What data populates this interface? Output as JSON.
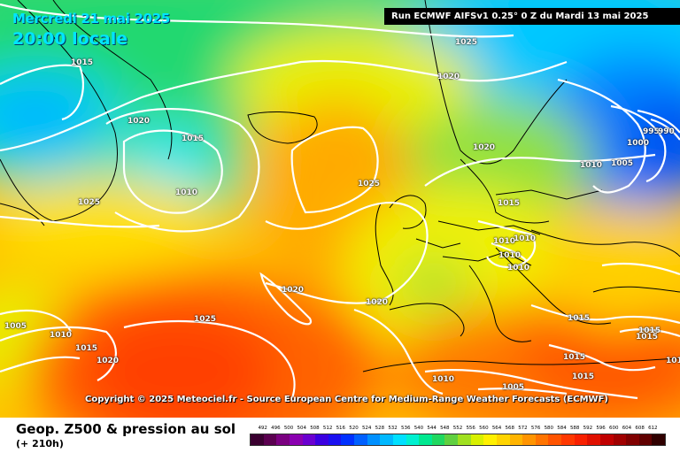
{
  "header": {
    "date": "Mercredi 21 mai 2025",
    "time": "20:00 locale",
    "run": "Run ECMWF AIFSv1 0.25° 0 Z du Mardi 13 mai 2025"
  },
  "copyright": "Copyright © 2025 Meteociel.fr - Source European Centre for Medium-Range Weather Forecasts (ECMWF)",
  "footer": {
    "title": "Geop. Z500 & pression au sol",
    "subtitle": "(+ 210h)"
  },
  "isobars": [
    {
      "id": "1025-north",
      "text": "1025"
    },
    {
      "id": "1015-greenland",
      "text": "1015"
    },
    {
      "id": "1020-iceland-n",
      "text": "1020"
    },
    {
      "id": "1020-west",
      "text": "1020"
    },
    {
      "id": "1015-low",
      "text": "1015"
    },
    {
      "id": "1010-low",
      "text": "1010"
    },
    {
      "id": "1025-west",
      "text": "1025"
    },
    {
      "id": "1025-highcenter",
      "text": "1025"
    },
    {
      "id": "1020-norway",
      "text": "1020"
    },
    {
      "id": "1010-russia",
      "text": "1010"
    },
    {
      "id": "1005-russia",
      "text": "1005"
    },
    {
      "id": "1000-russia",
      "text": "1000"
    },
    {
      "id": "995-russia",
      "text": "995"
    },
    {
      "id": "990-russia",
      "text": "990"
    },
    {
      "id": "1015-baltic",
      "text": "1015"
    },
    {
      "id": "1010-germany",
      "text": "1010"
    },
    {
      "id": "1010-germany-b",
      "text": "1010"
    },
    {
      "id": "1010-alps",
      "text": "1010"
    },
    {
      "id": "1010-alps-b",
      "text": "1010"
    },
    {
      "id": "1020-atlantic",
      "text": "1020"
    },
    {
      "id": "1020-biscay",
      "text": "1020"
    },
    {
      "id": "1025-azores",
      "text": "1025"
    },
    {
      "id": "1005-west",
      "text": "1005"
    },
    {
      "id": "1010-west",
      "text": "1010"
    },
    {
      "id": "1015-west",
      "text": "1015"
    },
    {
      "id": "1020-sw",
      "text": "1020"
    },
    {
      "id": "1015-balkans",
      "text": "1015"
    },
    {
      "id": "1015-turkey",
      "text": "1015"
    },
    {
      "id": "1015-turkey-b",
      "text": "1015"
    },
    {
      "id": "1015-greece",
      "text": "1015"
    },
    {
      "id": "1015-libya",
      "text": "1015"
    },
    {
      "id": "1010-africa",
      "text": "1010"
    },
    {
      "id": "1005-africa",
      "text": "1005"
    },
    {
      "id": "1010-far-east",
      "text": "1010"
    }
  ],
  "scale": {
    "labels": [
      "492",
      "496",
      "500",
      "504",
      "508",
      "512",
      "516",
      "520",
      "524",
      "528",
      "532",
      "536",
      "540",
      "544",
      "548",
      "552",
      "556",
      "560",
      "564",
      "568",
      "572",
      "576",
      "580",
      "584",
      "588",
      "592",
      "596",
      "600",
      "604",
      "608",
      "612"
    ],
    "colors": [
      "#3a0030",
      "#5b0050",
      "#7a0080",
      "#8a00b0",
      "#6a00d0",
      "#3a00e0",
      "#1a10f0",
      "#0030ff",
      "#0060ff",
      "#0090ff",
      "#00b8ff",
      "#00e0ff",
      "#00f0d0",
      "#00e890",
      "#20d860",
      "#60d040",
      "#a0e020",
      "#d8f000",
      "#fff000",
      "#ffd400",
      "#ffb400",
      "#ff9400",
      "#ff7400",
      "#ff5400",
      "#ff3800",
      "#f82000",
      "#e01000",
      "#c00000",
      "#a00000",
      "#800000",
      "#600000",
      "#300000"
    ]
  }
}
